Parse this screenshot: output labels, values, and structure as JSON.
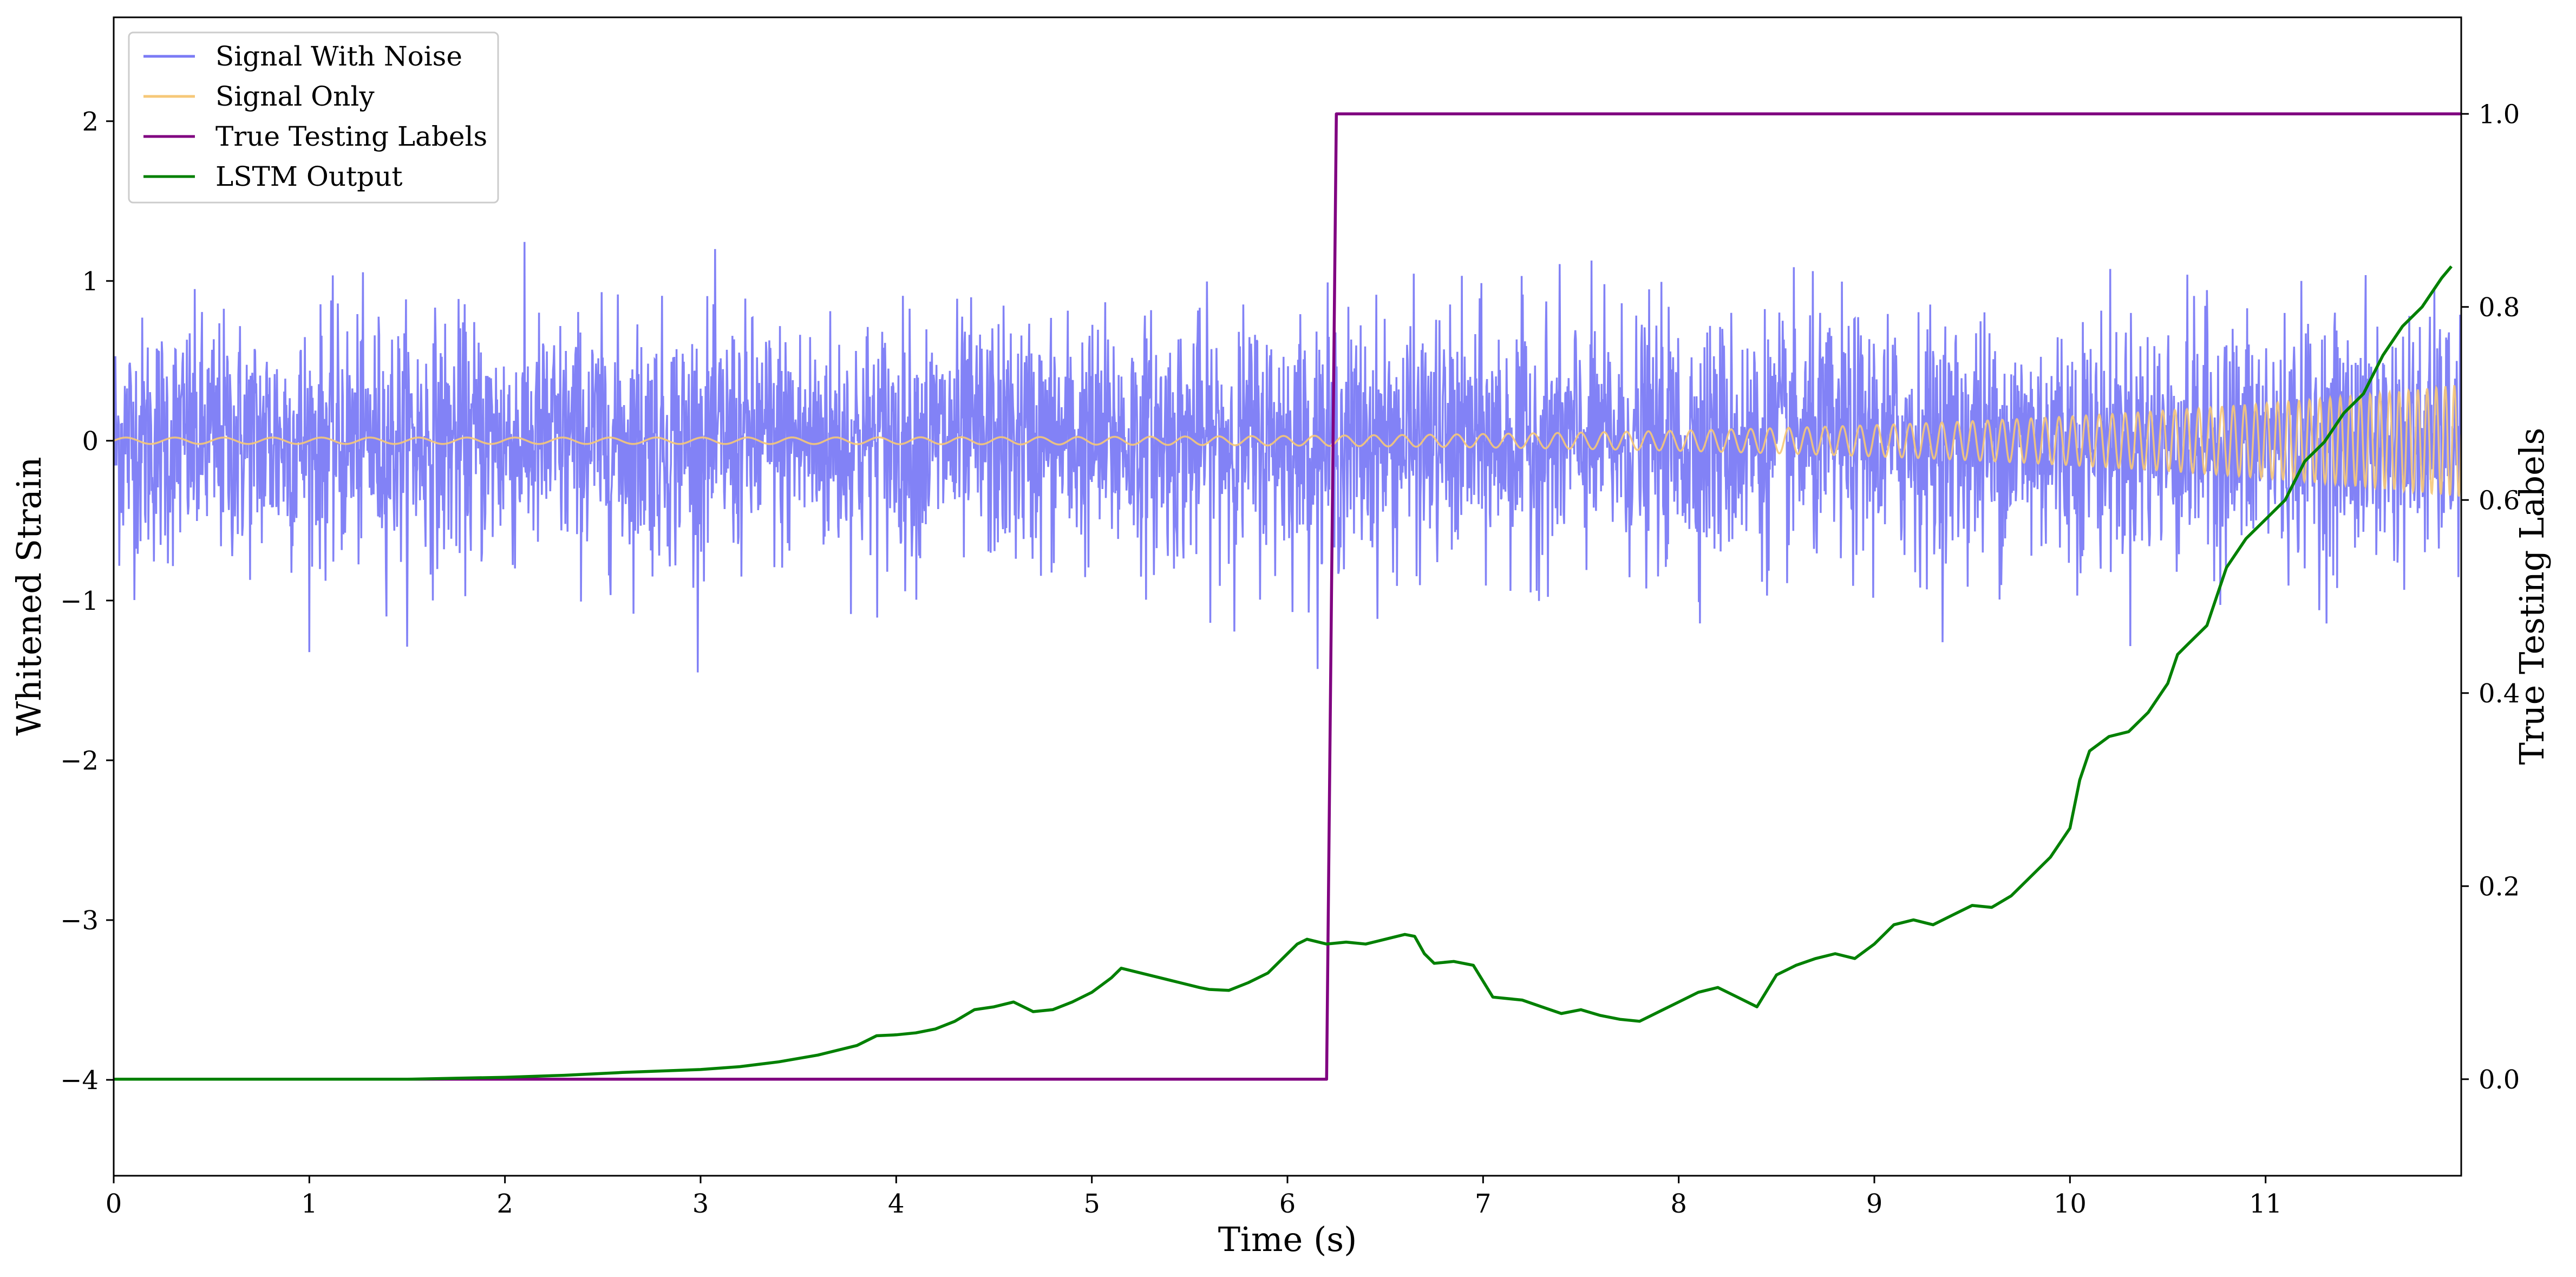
{
  "chart_data": {
    "type": "line",
    "title": "",
    "xlabel": "Time (s)",
    "ylabel_left": "Whitened Strain",
    "ylabel_right": "True Testing Labels",
    "xlim": [
      0,
      12
    ],
    "ylim_left": [
      -4.6,
      2.65
    ],
    "ylim_right": [
      -0.1,
      1.1
    ],
    "x_ticks": [
      "0",
      "1",
      "2",
      "3",
      "4",
      "5",
      "6",
      "7",
      "8",
      "9",
      "10",
      "11"
    ],
    "x_tick_values": [
      0,
      1,
      2,
      3,
      4,
      5,
      6,
      7,
      8,
      9,
      10,
      11
    ],
    "y_left_ticks": [
      "−4",
      "−3",
      "−2",
      "−1",
      "0",
      "1",
      "2"
    ],
    "y_left_tick_values": [
      -4,
      -3,
      -2,
      -1,
      0,
      1,
      2
    ],
    "y_right_ticks": [
      "0.0",
      "0.2",
      "0.4",
      "0.6",
      "0.8",
      "1.0"
    ],
    "y_right_tick_values": [
      0.0,
      0.2,
      0.4,
      0.6,
      0.8,
      1.0
    ],
    "grid": false,
    "legend_position": "top-left",
    "series": [
      {
        "name": "Signal With Noise",
        "axis": "left",
        "color": "#7b7bf5",
        "style": "noise",
        "std": 0.38,
        "peak_range": [
          -1.45,
          1.6
        ]
      },
      {
        "name": "Signal Only",
        "axis": "left",
        "color": "#f6c878",
        "style": "chirp",
        "start_amplitude": 0.02,
        "end_amplitude": 0.35,
        "start_frequency_hz": 4,
        "end_frequency_hz": 22
      },
      {
        "name": "True Testing Labels",
        "axis": "right",
        "color": "#800080",
        "x": [
          0,
          6.2,
          6.25,
          12
        ],
        "y": [
          0.0,
          0.0,
          1.0,
          1.0
        ]
      },
      {
        "name": "LSTM Output",
        "axis": "right",
        "color": "#008000",
        "x": [
          0,
          1.0,
          1.5,
          2.0,
          2.3,
          2.6,
          3.0,
          3.2,
          3.4,
          3.6,
          3.8,
          3.9,
          4.0,
          4.1,
          4.2,
          4.3,
          4.4,
          4.5,
          4.6,
          4.7,
          4.8,
          4.9,
          5.0,
          5.1,
          5.15,
          5.25,
          5.35,
          5.45,
          5.55,
          5.6,
          5.7,
          5.8,
          5.9,
          6.0,
          6.05,
          6.1,
          6.2,
          6.3,
          6.4,
          6.5,
          6.6,
          6.65,
          6.7,
          6.75,
          6.85,
          6.95,
          7.05,
          7.2,
          7.3,
          7.4,
          7.5,
          7.6,
          7.7,
          7.8,
          7.9,
          8.0,
          8.1,
          8.2,
          8.3,
          8.4,
          8.5,
          8.6,
          8.7,
          8.8,
          8.9,
          9.0,
          9.1,
          9.2,
          9.3,
          9.4,
          9.5,
          9.6,
          9.7,
          9.8,
          9.9,
          10.0,
          10.05,
          10.1,
          10.2,
          10.3,
          10.4,
          10.5,
          10.55,
          10.6,
          10.7,
          10.8,
          10.9,
          11.0,
          11.1,
          11.2,
          11.3,
          11.4,
          11.5,
          11.6,
          11.7,
          11.8,
          11.9,
          11.95
        ],
        "y": [
          0.0,
          0.0,
          0.0,
          0.002,
          0.004,
          0.007,
          0.01,
          0.013,
          0.018,
          0.025,
          0.035,
          0.045,
          0.046,
          0.048,
          0.052,
          0.06,
          0.072,
          0.075,
          0.08,
          0.07,
          0.072,
          0.08,
          0.09,
          0.105,
          0.115,
          0.11,
          0.105,
          0.1,
          0.095,
          0.093,
          0.092,
          0.1,
          0.11,
          0.13,
          0.14,
          0.145,
          0.14,
          0.142,
          0.14,
          0.145,
          0.15,
          0.148,
          0.13,
          0.12,
          0.122,
          0.118,
          0.085,
          0.082,
          0.075,
          0.068,
          0.072,
          0.066,
          0.062,
          0.06,
          0.07,
          0.08,
          0.09,
          0.095,
          0.085,
          0.075,
          0.108,
          0.118,
          0.125,
          0.13,
          0.125,
          0.14,
          0.16,
          0.165,
          0.16,
          0.17,
          0.18,
          0.178,
          0.19,
          0.21,
          0.23,
          0.26,
          0.31,
          0.34,
          0.355,
          0.36,
          0.38,
          0.41,
          0.44,
          0.45,
          0.47,
          0.53,
          0.56,
          0.58,
          0.6,
          0.64,
          0.66,
          0.69,
          0.71,
          0.75,
          0.78,
          0.8,
          0.83,
          0.842
        ]
      }
    ]
  },
  "legend": {
    "items": [
      {
        "label": "Signal With Noise",
        "color": "#7b7bf5"
      },
      {
        "label": "Signal Only",
        "color": "#f6c878"
      },
      {
        "label": "True Testing Labels",
        "color": "#800080"
      },
      {
        "label": "LSTM Output",
        "color": "#008000"
      }
    ]
  }
}
